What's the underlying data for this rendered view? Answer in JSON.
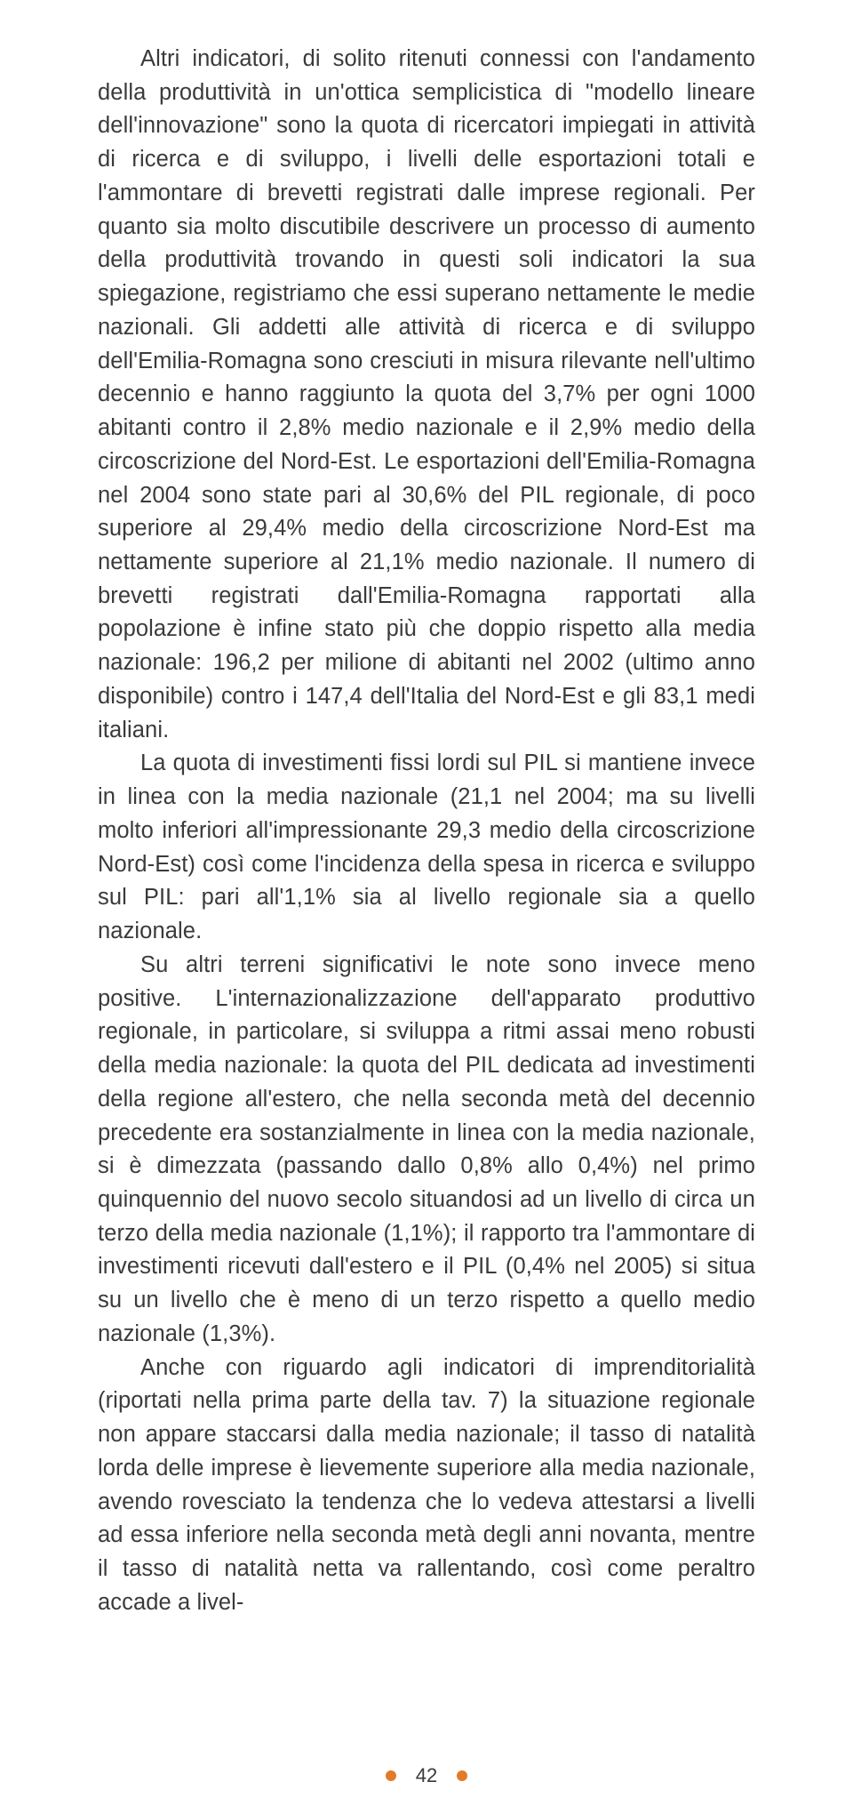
{
  "page": {
    "number": "42",
    "dot_color": "#e37a27",
    "text_color": "#3a3a3a",
    "background": "#ffffff",
    "font_size_pt": 19,
    "line_height": 1.48
  },
  "paragraphs": {
    "p1": "Altri indicatori, di solito ritenuti connessi con l'andamento della produttività in un'ottica semplicistica di \"modello lineare dell'innovazione\" sono la quota di ricercatori impiegati in attività di ricerca e di sviluppo, i livelli delle esportazioni totali e l'ammontare di brevetti registrati dalle imprese regionali. Per quanto sia molto discutibile descrivere un processo di aumento della produttività trovando in questi soli indicatori la sua spiegazione, registriamo che essi superano nettamente le medie nazionali. Gli addetti alle attività di ricerca e di sviluppo dell'Emilia-Romagna sono cresciuti in misura rilevante nell'ultimo decennio e hanno raggiunto la quota del 3,7% per ogni 1000 abitanti contro il 2,8% medio nazionale e il 2,9% medio della circoscrizione del Nord-Est. Le esportazioni dell'Emilia-Romagna nel 2004 sono state pari al 30,6% del PIL regionale, di poco superiore al 29,4% medio della circoscrizione Nord-Est ma nettamente superiore al 21,1% medio nazionale. Il numero di brevetti registrati dall'Emilia-Romagna rapportati alla popolazione è infine stato più che doppio rispetto alla media nazionale: 196,2 per milione di abitanti nel 2002 (ultimo anno disponibile) contro i 147,4 dell'Italia del Nord-Est e gli 83,1 medi italiani.",
    "p2": "La quota di investimenti fissi lordi sul PIL si mantiene invece in linea con la media nazionale (21,1 nel 2004; ma su livelli molto inferiori all'impressionante 29,3 medio della circoscrizione Nord-Est) così come l'incidenza della spesa in ricerca e sviluppo sul PIL: pari all'1,1% sia al livello regionale sia a quello nazionale.",
    "p3": "Su altri terreni significativi le note sono invece meno positive. L'internazionalizzazione dell'apparato produttivo regionale, in particolare, si sviluppa a ritmi assai meno robusti della media nazionale: la quota del PIL dedicata ad investimenti della regione all'estero, che nella seconda metà del decennio precedente era sostanzialmente in linea con la media nazionale, si è dimezzata (passando dallo 0,8% allo 0,4%) nel primo quinquennio del nuovo secolo situandosi ad un livello di circa un terzo della media nazionale (1,1%); il rapporto tra l'ammontare di investimenti ricevuti dall'estero e il PIL (0,4% nel 2005) si situa su un livello che è meno di un terzo rispetto a quello medio nazionale (1,3%).",
    "p4": "Anche con riguardo agli indicatori di imprenditorialità (riportati nella prima parte della tav. 7) la situazione regionale non appare staccarsi dalla media nazionale; il tasso di natalità lorda delle imprese è lievemente superiore alla media nazionale, avendo rovesciato la tendenza che lo vedeva attestarsi a livelli ad essa inferiore nella seconda metà degli anni novanta, mentre il tasso di natalità netta va rallentando, così come peraltro accade a livel-"
  }
}
